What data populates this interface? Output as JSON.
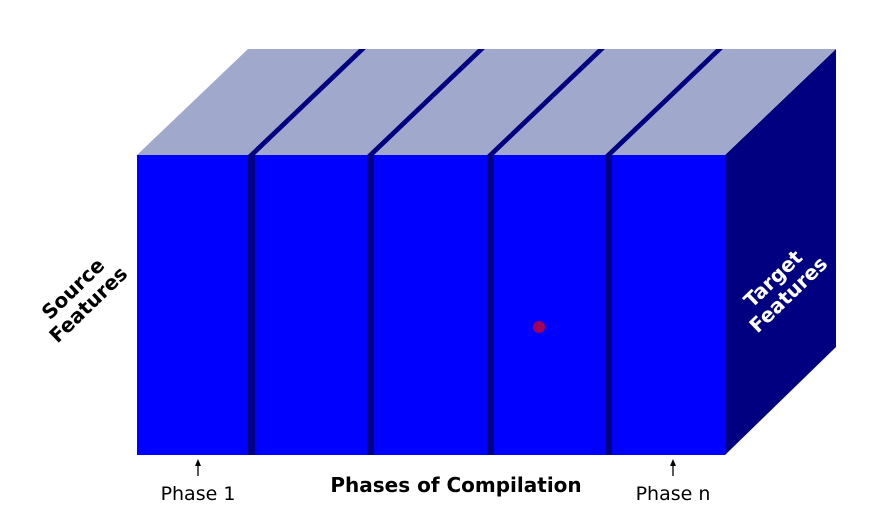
{
  "diagram": {
    "source_label": [
      "Source",
      "Features"
    ],
    "target_label": [
      "Target",
      "Features"
    ],
    "phase_first_label": "Phase 1",
    "phase_last_label": "Phase n",
    "axis_label": "Phases of Compilation",
    "slab_count": 5,
    "colors": {
      "front": "#0000ff",
      "top": "#a0a8cc",
      "side": "#000080",
      "gap": "#000080",
      "marker": "#a0005a"
    }
  }
}
